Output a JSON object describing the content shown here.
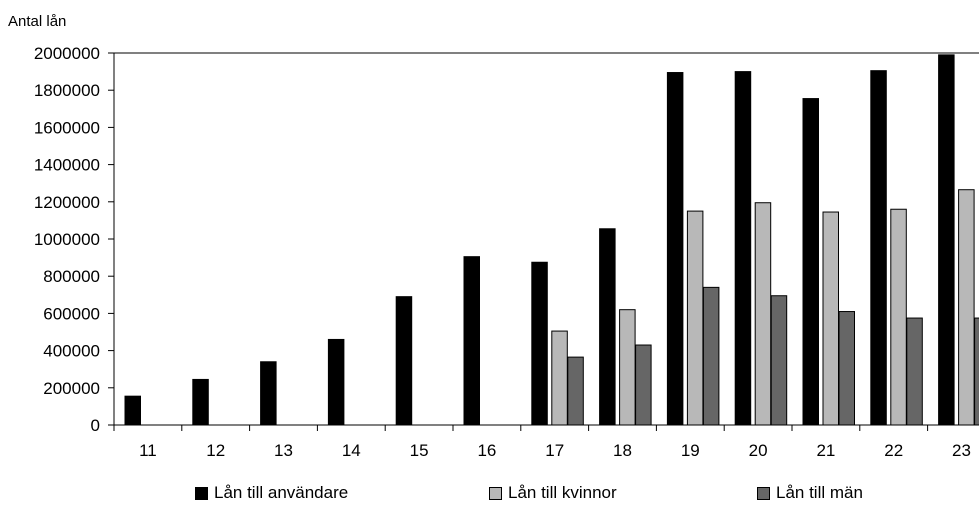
{
  "chart_data": {
    "type": "bar",
    "ylabel": "Antal lån",
    "categories": [
      "11",
      "12",
      "13",
      "14",
      "15",
      "16",
      "17",
      "18",
      "19",
      "20",
      "21",
      "22",
      "23"
    ],
    "ylim": [
      0,
      2000000
    ],
    "yticks": [
      0,
      200000,
      400000,
      600000,
      800000,
      1000000,
      1200000,
      1400000,
      1600000,
      1800000,
      2000000
    ],
    "ytick_labels": [
      "0",
      "200000",
      "400000",
      "600000",
      "800000",
      "1000000",
      "1200000",
      "1400000",
      "1600000",
      "1800000",
      "2000000"
    ],
    "series": [
      {
        "name": "Lån till användare",
        "color": "#000000",
        "values": [
          155000,
          245000,
          340000,
          460000,
          690000,
          905000,
          875000,
          1055000,
          1895000,
          1900000,
          1755000,
          1905000,
          1990000
        ]
      },
      {
        "name": "Lån till kvinnor",
        "color": "#b8b8b8",
        "values": [
          null,
          null,
          null,
          null,
          null,
          null,
          505000,
          620000,
          1150000,
          1195000,
          1145000,
          1160000,
          1265000
        ]
      },
      {
        "name": "Lån till män",
        "color": "#666666",
        "values": [
          null,
          null,
          null,
          null,
          null,
          null,
          365000,
          430000,
          740000,
          695000,
          610000,
          575000,
          575000
        ]
      }
    ],
    "grid": false,
    "legend_position": "bottom"
  }
}
